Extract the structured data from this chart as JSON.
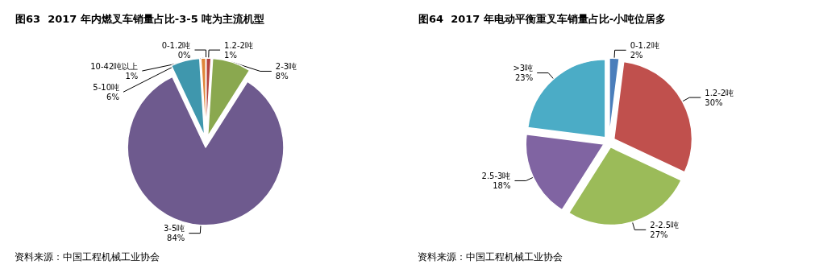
{
  "chart_data": [
    {
      "type": "pie",
      "title": "图63  2017 年内燃叉车销量占比-3-5 吨为主流机型",
      "categories": [
        "0-1.2吨",
        "1.2-2吨",
        "2-3吨",
        "3-5吨",
        "5-10吨",
        "10-42吨以上"
      ],
      "values": [
        0,
        1,
        8,
        84,
        6,
        1
      ],
      "colors": [
        "#4a7ebb",
        "#b5433f",
        "#8aa84f",
        "#6e5a8e",
        "#3f97ad",
        "#e0863a"
      ],
      "value_labels": [
        "0%",
        "1%",
        "8%",
        "84%",
        "6%",
        "1%"
      ],
      "legend": false,
      "annotations": [
        "资料来源：中国工程机械工业协会"
      ]
    },
    {
      "type": "pie",
      "title": "图64  2017 年电动平衡重叉车销量占比-小吨位居多",
      "categories": [
        "0-1.2吨",
        "1.2-2吨",
        "2-2.5吨",
        "2.5-3吨",
        ">3吨"
      ],
      "values": [
        2,
        30,
        27,
        18,
        23
      ],
      "colors": [
        "#4a7ebb",
        "#c0504d",
        "#9bbb59",
        "#8064a2",
        "#4bacc6"
      ],
      "value_labels": [
        "2%",
        "30%",
        "27%",
        "18%",
        "23%"
      ],
      "legend": false,
      "annotations": [
        "资料来源：中国工程机械工业协会"
      ]
    }
  ]
}
